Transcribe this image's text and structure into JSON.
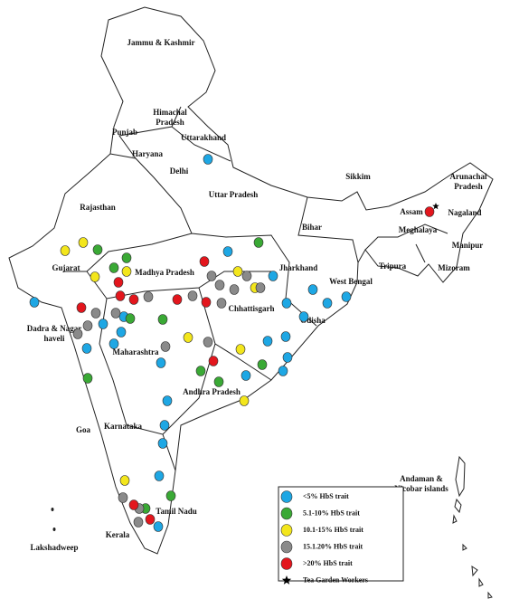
{
  "map": {
    "regions": [
      "Jammu & Kashmir",
      [
        "Himachal",
        "Pradesh"
      ],
      "Punjab",
      "Uttarakhand",
      "Haryana",
      "Delhi",
      "Uttar Pradesh",
      "Rajasthan",
      "Sikkim",
      [
        "Arunachal",
        "Pradesh"
      ],
      "Assam",
      "Nagaland",
      "Meghalaya",
      "Manipur",
      "Tripura",
      "Mizoram",
      "Bihar",
      "Jharkhand",
      "West Bengal",
      "Gujarat",
      "Madhya Pradesh",
      "Chhattisgarh",
      "Odisha",
      [
        "Dadra & Nagar",
        "haveli"
      ],
      "Maharashtra",
      "Andhra Pradesh",
      "Goa",
      "Karnataka",
      "Tamil Nadu",
      "Kerala",
      "Lakshadweep",
      [
        "Andaman &",
        "Nicobar islands"
      ]
    ],
    "legend": [
      {
        "name": "<5% HbS trait",
        "color": "#1ea7e4"
      },
      {
        "name": "5.1-10% HbS trait",
        "color": "#3aa935"
      },
      {
        "name": "10.1-15% HbS trait",
        "color": "#f3e61c"
      },
      {
        "name": "15.1.20% HbS trait",
        "color": "#8a8a8a"
      },
      {
        "name": ">20% HbS trait",
        "color": "#e3161d"
      },
      {
        "name": "Tea Garden Workers",
        "color": "#000000"
      }
    ]
  }
}
